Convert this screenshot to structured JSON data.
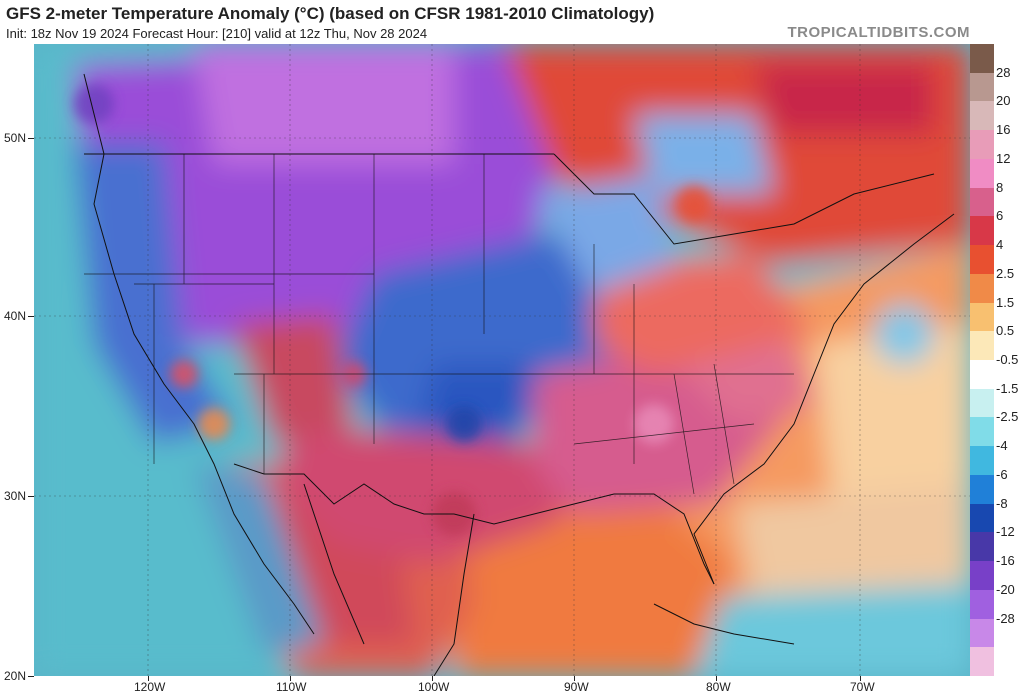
{
  "header": {
    "title": "GFS 2-meter Temperature Anomaly (°C) (based on CFSR 1981-2010 Climatology)",
    "subtitle": "Init: 18z Nov 19 2024   Forecast Hour: [210]   valid at 12z Thu, Nov 28 2024",
    "brand": "TROPICALTIDBITS.COM"
  },
  "axes": {
    "lat_labels": [
      "50N",
      "40N",
      "30N",
      "20N"
    ],
    "lon_labels": [
      "120W",
      "110W",
      "100W",
      "90W",
      "80W",
      "70W"
    ]
  },
  "colorbar": {
    "labels": [
      "28",
      "20",
      "16",
      "12",
      "8",
      "6",
      "4",
      "2.5",
      "1.5",
      "0.5",
      "-0.5",
      "-1.5",
      "-2.5",
      "-4",
      "-6",
      "-8",
      "-12",
      "-16",
      "-20",
      "-28"
    ],
    "colors": [
      "#7a5a4a",
      "#b89890",
      "#d8b8b8",
      "#e89cb8",
      "#f08cc4",
      "#d8608c",
      "#d83848",
      "#e85030",
      "#f08a48",
      "#f8c070",
      "#fce8b8",
      "#ffffff",
      "#c8f0f0",
      "#80dce8",
      "#40b8e0",
      "#2080d8",
      "#1848b0",
      "#4838a8",
      "#7840c8",
      "#a060e0",
      "#c888e8",
      "#f0c0e0"
    ]
  },
  "regions": [
    {
      "name": "Pacific Ocean",
      "color": "#5cc0d0"
    },
    {
      "name": "Northern Rockies / Plains",
      "color": "#9a50d8"
    },
    {
      "name": "Central Plains",
      "color": "#3868c8"
    },
    {
      "name": "Southern Plains / Texas",
      "color": "#d04868"
    },
    {
      "name": "Southeast US",
      "color": "#d85a8a"
    },
    {
      "name": "Gulf of Mexico",
      "color": "#f07840"
    },
    {
      "name": "Atlantic Ocean",
      "color": "#f8a060"
    },
    {
      "name": "Canada East",
      "color": "#e04838"
    },
    {
      "name": "Great Lakes",
      "color": "#78a8e8"
    },
    {
      "name": "Caribbean",
      "color": "#70c8e0"
    }
  ]
}
